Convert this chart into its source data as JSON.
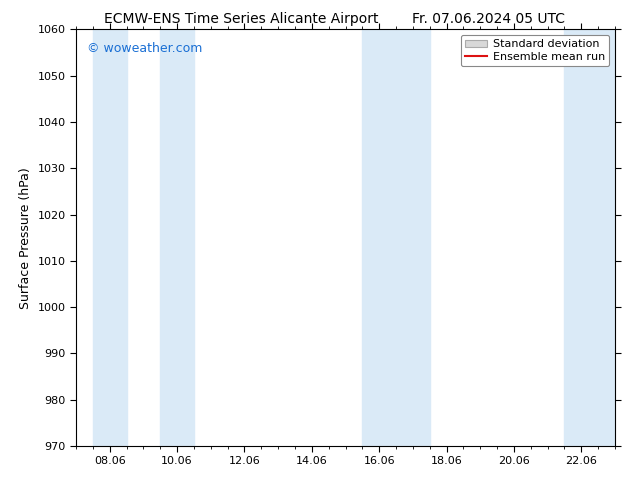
{
  "title": "ECMW-ENS Time Series Alicante Airport      Fr. 07.06.2024 05 UTC",
  "title_left": "ECMW-ENS Time Series Alicante Airport",
  "title_right": "Fr. 07.06.2024 05 UTC",
  "ylabel": "Surface Pressure (hPa)",
  "ylim": [
    970,
    1060
  ],
  "yticks": [
    970,
    980,
    990,
    1000,
    1010,
    1020,
    1030,
    1040,
    1050,
    1060
  ],
  "xlim": [
    0,
    16
  ],
  "xtick_positions": [
    1,
    3,
    5,
    7,
    9,
    11,
    13,
    15
  ],
  "xtick_labels": [
    "08.06",
    "10.06",
    "12.06",
    "14.06",
    "16.06",
    "18.06",
    "20.06",
    "22.06"
  ],
  "shaded_bands": [
    {
      "x_start": 0.5,
      "x_end": 1.5,
      "color": "#daeaf7"
    },
    {
      "x_start": 2.5,
      "x_end": 3.5,
      "color": "#daeaf7"
    },
    {
      "x_start": 8.5,
      "x_end": 10.5,
      "color": "#daeaf7"
    },
    {
      "x_start": 14.5,
      "x_end": 16,
      "color": "#daeaf7"
    }
  ],
  "watermark_text": "© woweather.com",
  "watermark_color": "#1a6fd4",
  "background_color": "#ffffff",
  "plot_bg_color": "#ffffff",
  "legend_std_facecolor": "#d8d8d8",
  "legend_std_edgecolor": "#aaaaaa",
  "legend_mean_color": "#dd1111",
  "title_fontsize": 10,
  "ylabel_fontsize": 9,
  "tick_fontsize": 8,
  "legend_fontsize": 8,
  "watermark_fontsize": 9
}
